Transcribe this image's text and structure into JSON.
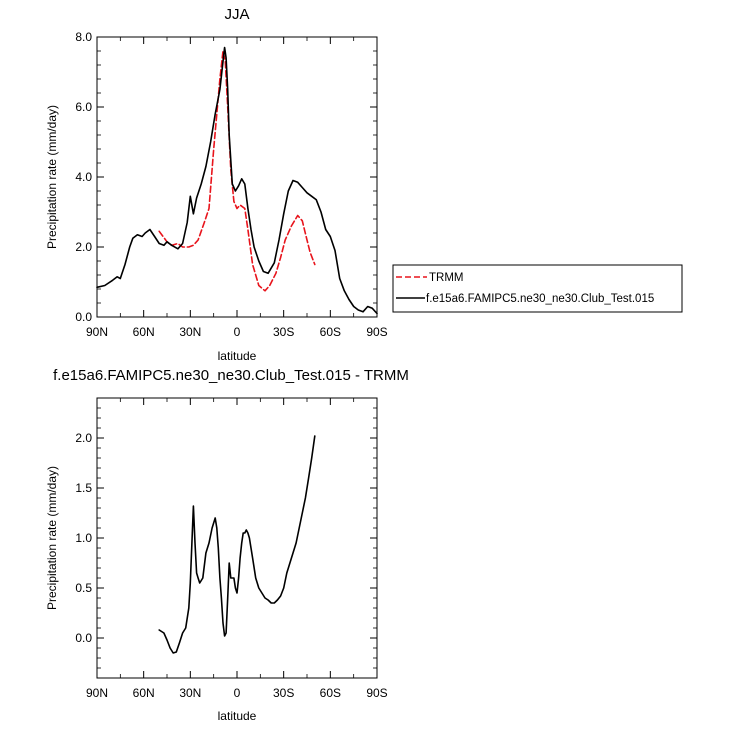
{
  "chart_data": [
    {
      "type": "line",
      "title": "JJA",
      "xlabel": "latitude",
      "ylabel": "Precipitation rate (mm/day)",
      "xlim": [
        90,
        -90
      ],
      "ylim": [
        0,
        8
      ],
      "x_ticks": [
        90,
        60,
        30,
        0,
        -30,
        -60,
        -90
      ],
      "x_tick_labels": [
        "90N",
        "60N",
        "30N",
        "0",
        "30S",
        "60S",
        "90S"
      ],
      "y_ticks": [
        0,
        2,
        4,
        6,
        8
      ],
      "y_tick_labels": [
        "0.0",
        "2.0",
        "4.0",
        "6.0",
        "8.0"
      ],
      "legend_position": "right, outside plot",
      "grid": false,
      "series": [
        {
          "name": "TRMM",
          "color": "#e8141c",
          "dash": "dashed",
          "x": [
            50,
            45,
            42,
            38,
            35,
            31,
            28,
            25,
            21,
            18,
            15,
            11,
            9,
            7.5,
            6,
            4,
            2,
            0,
            -2,
            -5,
            -7,
            -10,
            -14,
            -18,
            -21,
            -25,
            -28,
            -31,
            -35,
            -39,
            -42,
            -45,
            -47,
            -50
          ],
          "y": [
            2.45,
            2.15,
            2.05,
            2.1,
            2.0,
            2.0,
            2.05,
            2.2,
            2.7,
            3.1,
            4.8,
            6.8,
            7.6,
            7.3,
            6.0,
            4.2,
            3.3,
            3.1,
            3.2,
            3.1,
            2.5,
            1.5,
            0.9,
            0.75,
            0.9,
            1.25,
            1.7,
            2.2,
            2.6,
            2.9,
            2.75,
            2.2,
            1.85,
            1.5
          ]
        },
        {
          "name": "f.e15a6.FAMIPC5.ne30_ne30.Club_Test.015",
          "color": "#000000",
          "dash": "solid",
          "x": [
            90,
            85,
            80,
            77,
            75,
            72,
            69,
            67,
            64,
            61,
            59,
            56,
            53,
            50,
            47,
            45,
            42,
            38,
            35,
            32,
            30,
            28,
            26,
            23,
            20,
            17,
            14,
            11,
            9,
            8,
            7,
            6,
            5,
            3,
            1,
            -1,
            -3,
            -5,
            -7,
            -9,
            -11,
            -14,
            -17,
            -20,
            -24,
            -27,
            -30,
            -33,
            -36,
            -39,
            -42,
            -45,
            -48,
            -51,
            -54,
            -57,
            -60,
            -63,
            -66,
            -69,
            -72,
            -75,
            -78,
            -81,
            -84,
            -87,
            -90
          ],
          "y": [
            0.85,
            0.9,
            1.05,
            1.15,
            1.1,
            1.5,
            2.0,
            2.25,
            2.35,
            2.3,
            2.4,
            2.5,
            2.3,
            2.1,
            2.05,
            2.15,
            2.05,
            1.95,
            2.1,
            2.7,
            3.45,
            2.95,
            3.4,
            3.8,
            4.3,
            5.0,
            5.8,
            6.5,
            7.3,
            7.7,
            7.4,
            6.5,
            5.2,
            3.8,
            3.6,
            3.75,
            3.95,
            3.8,
            3.1,
            2.5,
            2.0,
            1.6,
            1.3,
            1.25,
            1.55,
            2.2,
            2.95,
            3.6,
            3.9,
            3.85,
            3.7,
            3.55,
            3.45,
            3.35,
            3.0,
            2.5,
            2.3,
            1.9,
            1.1,
            0.75,
            0.5,
            0.3,
            0.2,
            0.15,
            0.3,
            0.25,
            0.1
          ]
        }
      ]
    },
    {
      "type": "line",
      "title": "f.e15a6.FAMIPC5.ne30_ne30.Club_Test.015 - TRMM",
      "xlabel": "latitude",
      "ylabel": "Precipitation rate (mm/day)",
      "xlim": [
        90,
        -90
      ],
      "ylim": [
        -0.4,
        2.4
      ],
      "x_ticks": [
        90,
        60,
        30,
        0,
        -30,
        -60,
        -90
      ],
      "x_tick_labels": [
        "90N",
        "60N",
        "30N",
        "0",
        "30S",
        "60S",
        "90S"
      ],
      "y_ticks": [
        0,
        0.5,
        1,
        1.5,
        2
      ],
      "y_tick_labels": [
        "0.0",
        "0.5",
        "1.0",
        "1.5",
        "2.0"
      ],
      "grid": false,
      "series": [
        {
          "name": "",
          "color": "#000000",
          "dash": "solid",
          "x": [
            50,
            47,
            45,
            43,
            41,
            39,
            37,
            35,
            33,
            31,
            30,
            29,
            28,
            27,
            26,
            25,
            24,
            22,
            20,
            18,
            16,
            14,
            13,
            12,
            11,
            10,
            9,
            8,
            7,
            6,
            5,
            4,
            3,
            2,
            1,
            0,
            -1,
            -2,
            -3,
            -4,
            -5,
            -6,
            -7,
            -8,
            -9,
            -10,
            -12,
            -14,
            -16,
            -18,
            -20,
            -22,
            -24,
            -26,
            -28,
            -30,
            -32,
            -34,
            -36,
            -38,
            -40,
            -42,
            -44,
            -46,
            -48,
            -50
          ],
          "y": [
            0.08,
            0.05,
            -0.02,
            -0.1,
            -0.15,
            -0.14,
            -0.05,
            0.05,
            0.1,
            0.3,
            0.55,
            0.95,
            1.32,
            0.95,
            0.65,
            0.6,
            0.55,
            0.6,
            0.85,
            0.95,
            1.1,
            1.2,
            1.1,
            0.9,
            0.6,
            0.4,
            0.15,
            0.02,
            0.05,
            0.4,
            0.75,
            0.6,
            0.6,
            0.6,
            0.5,
            0.45,
            0.6,
            0.8,
            0.95,
            1.05,
            1.05,
            1.08,
            1.05,
            1.0,
            0.9,
            0.8,
            0.6,
            0.5,
            0.45,
            0.4,
            0.38,
            0.35,
            0.35,
            0.38,
            0.42,
            0.5,
            0.65,
            0.75,
            0.85,
            0.95,
            1.1,
            1.25,
            1.4,
            1.6,
            1.8,
            2.02
          ]
        }
      ]
    }
  ],
  "legend": {
    "entries": [
      {
        "label": "TRMM",
        "color": "#e8141c",
        "dash": "dashed"
      },
      {
        "label": "f.e15a6.FAMIPC5.ne30_ne30.Club_Test.015",
        "color": "#000000",
        "dash": "solid"
      }
    ]
  }
}
